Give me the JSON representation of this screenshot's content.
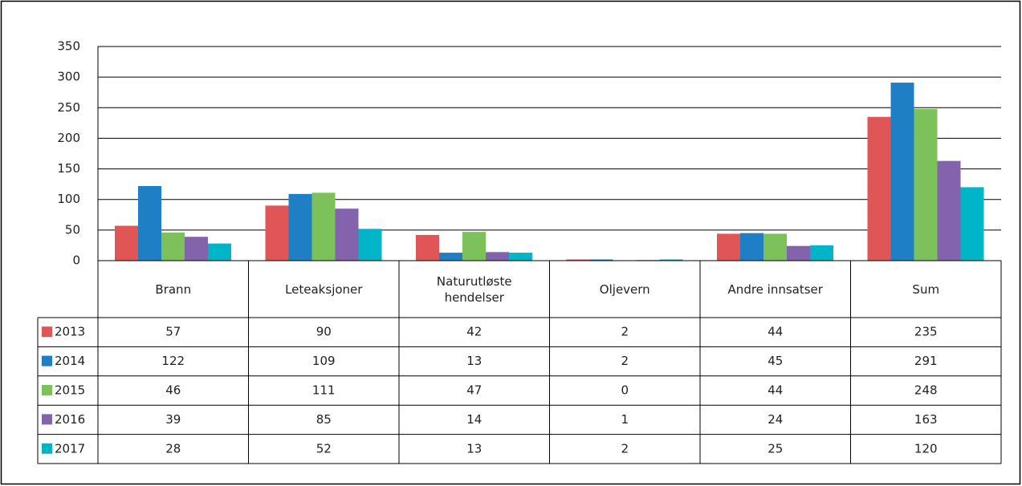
{
  "chart_data": {
    "type": "bar",
    "categories": [
      "Brann",
      "Leteaksjoner",
      "Naturutløste hendelser",
      "Oljevern",
      "Andre innsatser",
      "Sum"
    ],
    "series": [
      {
        "name": "2013",
        "color": "#e05656",
        "values": [
          57,
          90,
          42,
          2,
          44,
          235
        ]
      },
      {
        "name": "2014",
        "color": "#1f7fc5",
        "values": [
          122,
          109,
          13,
          2,
          45,
          291
        ]
      },
      {
        "name": "2015",
        "color": "#7dc15b",
        "values": [
          46,
          111,
          47,
          0,
          44,
          248
        ]
      },
      {
        "name": "2016",
        "color": "#8463ad",
        "values": [
          39,
          85,
          14,
          1,
          24,
          163
        ]
      },
      {
        "name": "2017",
        "color": "#00b5c8",
        "values": [
          28,
          52,
          13,
          2,
          25,
          120
        ]
      }
    ],
    "ylim": [
      0,
      350
    ],
    "yticks": [
      0,
      50,
      100,
      150,
      200,
      250,
      300,
      350
    ],
    "grid": true
  }
}
